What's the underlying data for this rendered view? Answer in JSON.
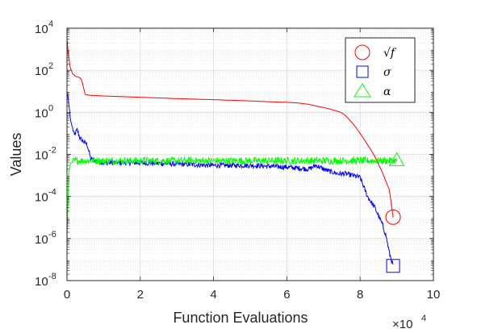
{
  "chart_data": {
    "type": "line",
    "xlabel": "Function Evaluations",
    "ylabel": "Values",
    "x_multiplier": {
      "base": "×10",
      "exp": "4"
    },
    "xlim": [
      0,
      100000
    ],
    "ylim": [
      1e-08,
      10000.0
    ],
    "yscale": "log",
    "grid": true,
    "minor_grid": true,
    "legend_position": "top-right",
    "x_ticks": [
      {
        "v": 0,
        "label": "0"
      },
      {
        "v": 20000,
        "label": "2"
      },
      {
        "v": 40000,
        "label": "4"
      },
      {
        "v": 60000,
        "label": "6"
      },
      {
        "v": 80000,
        "label": "8"
      },
      {
        "v": 100000,
        "label": "10"
      }
    ],
    "y_ticks": [
      {
        "v": 10000.0,
        "base": "10",
        "exp": "4"
      },
      {
        "v": 100.0,
        "base": "10",
        "exp": "2"
      },
      {
        "v": 1.0,
        "base": "10",
        "exp": "0"
      },
      {
        "v": 0.01,
        "base": "10",
        "exp": "-2"
      },
      {
        "v": 0.0001,
        "base": "10",
        "exp": "-4"
      },
      {
        "v": 1e-06,
        "base": "10",
        "exp": "-6"
      },
      {
        "v": 1e-08,
        "base": "10",
        "exp": "-8"
      }
    ],
    "series": [
      {
        "name": "√f",
        "color": "#ff0000",
        "marker": "circle",
        "x": [
          0,
          300,
          800,
          1500,
          2500,
          3500,
          4000,
          4500,
          5000,
          6000,
          10000,
          20000,
          30000,
          40000,
          50000,
          55000,
          60000,
          63000,
          66000,
          68000,
          70000,
          72000,
          74000,
          75000,
          76000,
          78000,
          80000,
          82000,
          84000,
          86000,
          88000,
          89000
        ],
        "y": [
          3000,
          800,
          150,
          70,
          50,
          45,
          35,
          15,
          7,
          6.5,
          6.0,
          5.2,
          4.5,
          4.0,
          3.5,
          3.2,
          3.0,
          2.8,
          2.4,
          2.0,
          1.7,
          1.4,
          1.1,
          0.95,
          0.7,
          0.3,
          0.1,
          0.03,
          0.008,
          0.0015,
          0.0002,
          1e-05
        ]
      },
      {
        "name": "σ",
        "color": "#0000ff",
        "marker": "square",
        "x": [
          0,
          300,
          1000,
          2000,
          2800,
          3500,
          4500,
          5500,
          6500,
          10000,
          20000,
          30000,
          40000,
          50000,
          60000,
          66000,
          68000,
          70000,
          72000,
          74000,
          76000,
          78000,
          80000,
          82000,
          84000,
          86000,
          87000,
          88000,
          89000
        ],
        "y": [
          10,
          5,
          0.4,
          0.08,
          0.15,
          0.06,
          0.04,
          0.03,
          0.006,
          0.004,
          0.004,
          0.0035,
          0.003,
          0.003,
          0.0025,
          0.002,
          0.003,
          0.002,
          0.0015,
          0.0012,
          0.0012,
          0.001,
          0.0008,
          0.0001,
          3e-05,
          5e-06,
          1.5e-06,
          2e-07,
          5e-08
        ]
      },
      {
        "name": "α",
        "color": "#00ff00",
        "marker": "triangle",
        "x": [
          0,
          500,
          1000,
          2000,
          5000,
          10000,
          20000,
          30000,
          40000,
          50000,
          60000,
          70000,
          80000,
          85000,
          90000
        ],
        "y": [
          1e-06,
          0.0015,
          0.004,
          0.005,
          0.005,
          0.005,
          0.005,
          0.005,
          0.005,
          0.005,
          0.005,
          0.005,
          0.005,
          0.005,
          0.005
        ]
      }
    ]
  }
}
